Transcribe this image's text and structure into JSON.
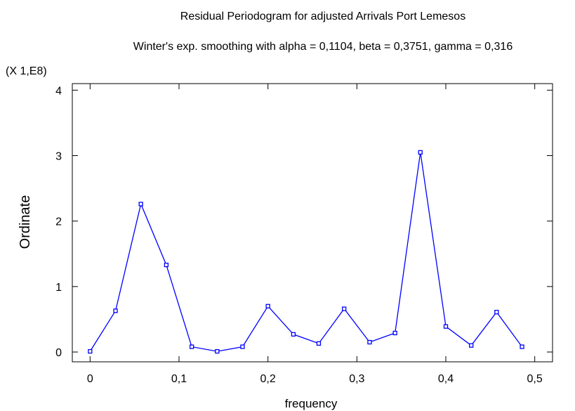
{
  "chart_data": {
    "type": "line",
    "title": "Residual Periodogram for adjusted Arrivals Port Lemesos",
    "subtitle": "Winter's exp. smoothing with alpha = 0,1104, beta = 0,3751, gamma = 0,316",
    "xlabel": "frequency",
    "ylabel": "Ordinate",
    "y_scale_note": "(X 1,E8)",
    "xlim": [
      -0.02,
      0.52
    ],
    "ylim": [
      -0.15,
      4.1
    ],
    "x_ticks": [
      0,
      0.1,
      0.2,
      0.3,
      0.4,
      0.5
    ],
    "x_tick_labels": [
      "0",
      "0,1",
      "0,2",
      "0,3",
      "0,4",
      "0,5"
    ],
    "y_ticks": [
      0,
      1,
      2,
      3,
      4
    ],
    "y_tick_labels": [
      "0",
      "1",
      "2",
      "3",
      "4"
    ],
    "grid": false,
    "line_color": "#0000ff",
    "series": [
      {
        "x": [
          0,
          0.0286,
          0.0571,
          0.0857,
          0.1143,
          0.1429,
          0.1714,
          0.2,
          0.2286,
          0.2571,
          0.2857,
          0.3143,
          0.3429,
          0.3714,
          0.4,
          0.4286,
          0.4571,
          0.4857
        ],
        "values": [
          0.01,
          0.63,
          2.26,
          1.33,
          0.08,
          0.01,
          0.08,
          0.7,
          0.27,
          0.13,
          0.66,
          0.15,
          0.29,
          3.05,
          0.39,
          0.1,
          0.61,
          0.08
        ]
      }
    ]
  }
}
